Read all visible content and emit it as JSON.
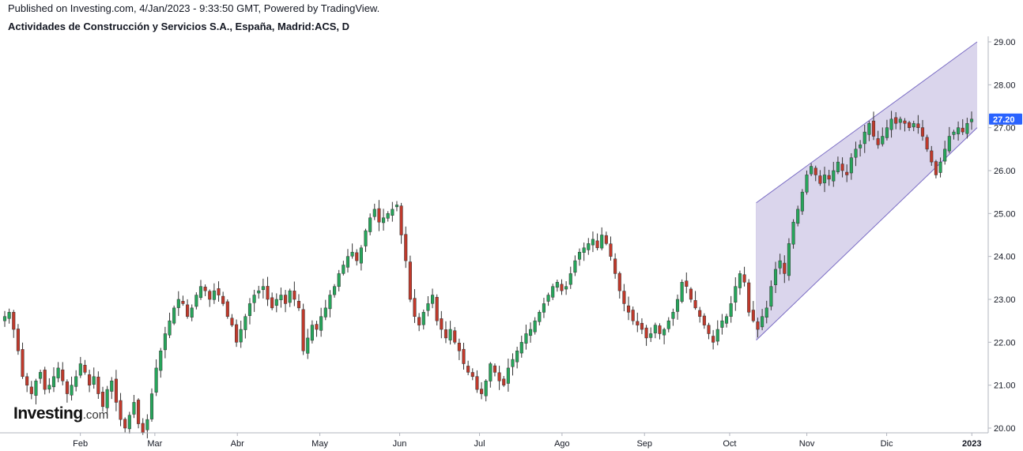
{
  "header": {
    "published": "Published on Investing.com, 4/Jan/2023 - 9:33:50 GMT, Powered by TradingView.",
    "symbol": "Actividades de Construcción y Servicios S.A., España, Madrid:ACS, D"
  },
  "logo": {
    "brand": "Investing",
    "suffix": ".com"
  },
  "colors": {
    "up": "#26a65b",
    "down": "#c0392b",
    "channel_fill": "#d6d0ea",
    "channel_line": "#7a6cc4",
    "price_badge": "#2962ff",
    "axis": "#b2b5be"
  },
  "chart_data": {
    "type": "candlestick",
    "title": "Actividades de Construcción y Servicios S.A., España, Madrid:ACS, D",
    "ylim": [
      19.9,
      29.05
    ],
    "y_ticks": [
      "20.00",
      "21.00",
      "22.00",
      "23.00",
      "24.00",
      "25.00",
      "26.00",
      "27.00",
      "28.00",
      "29.00"
    ],
    "x_range": [
      "2022-01-03",
      "2023-01-04"
    ],
    "x_ticks": [
      {
        "date": "2022-02-01",
        "label": "Feb"
      },
      {
        "date": "2022-03-01",
        "label": "Mar"
      },
      {
        "date": "2022-04-01",
        "label": "Abr"
      },
      {
        "date": "2022-05-02",
        "label": "May"
      },
      {
        "date": "2022-06-01",
        "label": "Jun"
      },
      {
        "date": "2022-07-01",
        "label": "Jul"
      },
      {
        "date": "2022-08-01",
        "label": "Ago"
      },
      {
        "date": "2022-09-01",
        "label": "Sep"
      },
      {
        "date": "2022-10-03",
        "label": "Oct"
      },
      {
        "date": "2022-11-01",
        "label": "Nov"
      },
      {
        "date": "2022-12-01",
        "label": "Dic"
      },
      {
        "date": "2023-01-02",
        "label": "2023",
        "bold": true
      }
    ],
    "last_price": "27.20",
    "channel": {
      "start": "2022-10-13",
      "end": "2023-01-04",
      "upper": [
        25.25,
        29.0
      ],
      "lower": [
        22.05,
        27.0
      ]
    },
    "closes": [
      22.6,
      22.7,
      22.3,
      21.8,
      21.2,
      21.0,
      20.8,
      21.1,
      21.3,
      20.9,
      21.0,
      21.2,
      21.4,
      21.1,
      20.8,
      21.0,
      21.2,
      21.5,
      21.3,
      21.0,
      21.2,
      20.8,
      20.5,
      20.9,
      21.1,
      20.6,
      20.2,
      20.0,
      20.3,
      20.6,
      20.1,
      19.9,
      20.2,
      20.8,
      21.4,
      21.8,
      22.2,
      22.5,
      22.8,
      23.0,
      22.9,
      22.6,
      22.8,
      23.1,
      23.3,
      23.2,
      23.0,
      23.2,
      23.1,
      22.9,
      22.6,
      22.4,
      22.0,
      22.3,
      22.6,
      22.9,
      23.1,
      23.2,
      23.3,
      23.0,
      22.8,
      23.0,
      23.1,
      22.9,
      23.2,
      23.0,
      22.8,
      21.8,
      22.1,
      22.4,
      22.3,
      22.6,
      22.8,
      23.1,
      23.3,
      23.6,
      23.8,
      24.0,
      24.1,
      23.9,
      24.2,
      24.6,
      24.9,
      25.1,
      24.8,
      24.9,
      25.0,
      25.1,
      25.2,
      24.5,
      23.9,
      23.0,
      22.6,
      22.4,
      22.7,
      22.9,
      23.1,
      22.5,
      22.3,
      22.1,
      22.3,
      22.0,
      21.8,
      21.5,
      21.3,
      21.2,
      20.9,
      20.8,
      21.1,
      21.5,
      21.3,
      21.1,
      21.0,
      21.4,
      21.6,
      21.8,
      22.0,
      22.2,
      22.3,
      22.5,
      22.7,
      22.9,
      23.1,
      23.3,
      23.4,
      23.2,
      23.3,
      23.6,
      23.9,
      24.1,
      24.2,
      24.3,
      24.4,
      24.2,
      24.5,
      24.3,
      24.0,
      23.6,
      23.2,
      22.9,
      22.7,
      22.5,
      22.4,
      22.3,
      22.1,
      22.2,
      22.4,
      22.2,
      22.3,
      22.5,
      22.7,
      23.0,
      23.4,
      23.3,
      23.0,
      22.8,
      22.6,
      22.4,
      22.2,
      22.0,
      22.3,
      22.5,
      22.6,
      22.9,
      23.3,
      23.6,
      23.4,
      22.7,
      22.5,
      22.3,
      22.6,
      22.8,
      23.3,
      23.7,
      23.9,
      23.6,
      24.3,
      24.8,
      25.1,
      25.5,
      25.9,
      26.1,
      25.9,
      25.7,
      25.9,
      25.8,
      26.0,
      26.2,
      26.0,
      25.9,
      26.3,
      26.5,
      26.6,
      26.9,
      27.1,
      26.8,
      26.6,
      26.8,
      27.0,
      27.2,
      27.1,
      27.2,
      27.1,
      27.0,
      27.1,
      27.0,
      26.8,
      26.5,
      26.2,
      25.9,
      26.2,
      26.5,
      26.8,
      26.9,
      27.0,
      26.9,
      27.1,
      27.2
    ]
  }
}
